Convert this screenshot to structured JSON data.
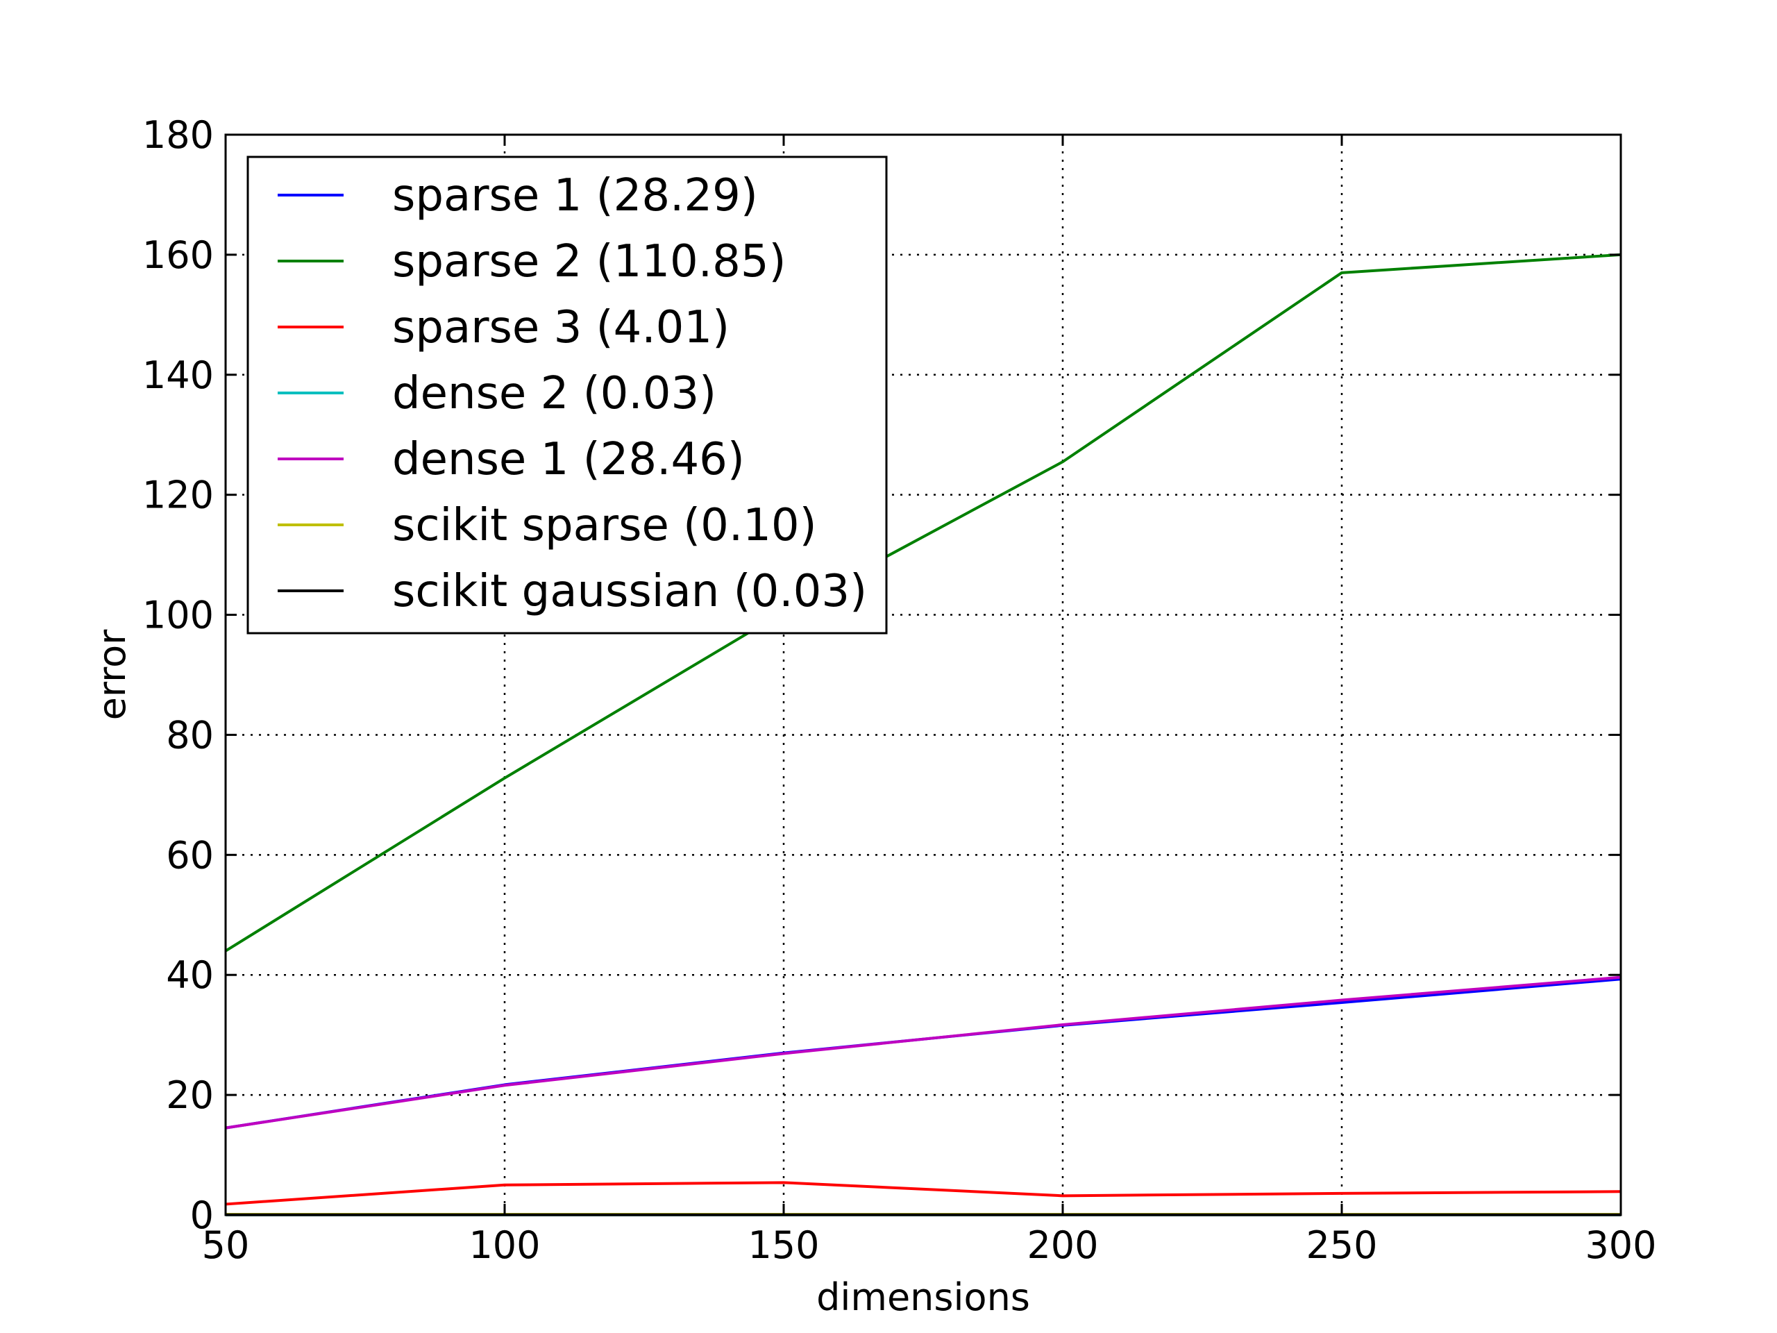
{
  "chart_data": {
    "type": "line",
    "title": "",
    "xlabel": "dimensions",
    "ylabel": "error",
    "xlim": [
      50,
      300
    ],
    "ylim": [
      0,
      180
    ],
    "x_ticks": [
      50,
      100,
      150,
      200,
      250,
      300
    ],
    "y_ticks": [
      0,
      20,
      40,
      60,
      80,
      100,
      120,
      140,
      160,
      180
    ],
    "grid": true,
    "legend_position": "top-left",
    "x": [
      50,
      100,
      150,
      200,
      250,
      300
    ],
    "series": [
      {
        "name": "sparse 1 (28.29)",
        "color": "#0000ff",
        "values": [
          14.5,
          21.7,
          27.0,
          31.6,
          35.4,
          39.3
        ]
      },
      {
        "name": "sparse 2 (110.85)",
        "color": "#008000",
        "values": [
          44.0,
          72.8,
          100.5,
          125.5,
          157.0,
          160.0
        ]
      },
      {
        "name": "sparse 3 (4.01)",
        "color": "#ff0000",
        "values": [
          1.8,
          5.0,
          5.4,
          3.2,
          3.6,
          3.9
        ]
      },
      {
        "name": "dense 2 (0.03)",
        "color": "#00bfbf",
        "values": [
          0.03,
          0.03,
          0.03,
          0.03,
          0.03,
          0.03
        ]
      },
      {
        "name": "dense 1 (28.46)",
        "color": "#bf00bf",
        "values": [
          14.5,
          21.6,
          26.9,
          31.7,
          35.8,
          39.6
        ]
      },
      {
        "name": "scikit sparse (0.10)",
        "color": "#bfbf00",
        "values": [
          0.1,
          0.1,
          0.1,
          0.1,
          0.1,
          0.1
        ]
      },
      {
        "name": "scikit gaussian (0.03)",
        "color": "#000000",
        "values": [
          0.03,
          0.03,
          0.03,
          0.03,
          0.03,
          0.03
        ]
      }
    ]
  }
}
